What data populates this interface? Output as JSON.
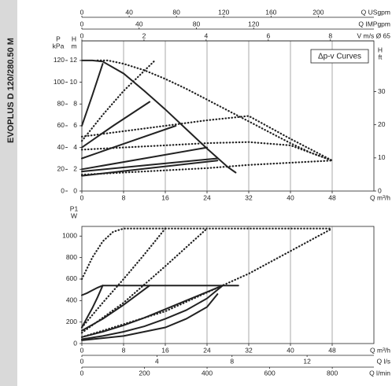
{
  "side_title": "EVOPLUS D 120/280.50 M",
  "chart_data": [
    {
      "type": "line",
      "annotation": "Δp-v Curves",
      "xlabel": "Q m³/h",
      "xlim": [
        0,
        56
      ],
      "xticks": [
        0,
        8,
        16,
        24,
        32,
        40,
        48
      ],
      "ylabel": [
        "H",
        "m"
      ],
      "ylim": [
        0,
        13.8
      ],
      "yticks": [
        0,
        2,
        4,
        6,
        8,
        10,
        12
      ],
      "grid": true,
      "extra_axes": [
        {
          "position": "left",
          "label": [
            "P",
            "kPa"
          ],
          "lim": [
            0,
            138
          ],
          "ticks": [
            0,
            20,
            40,
            60,
            80,
            100,
            120
          ]
        },
        {
          "position": "right",
          "label": [
            "H",
            "ft"
          ],
          "lim": [
            0,
            45.3
          ],
          "ticks": [
            0,
            10,
            20,
            30
          ]
        },
        {
          "position": "top",
          "label": "Q USgpm",
          "lim": [
            0,
            247
          ],
          "ticks": [
            0,
            40,
            80,
            120,
            160,
            200
          ]
        },
        {
          "position": "top",
          "label": "Q IMPgpm",
          "lim": [
            0,
            204
          ],
          "ticks": [
            0,
            40,
            80,
            120
          ]
        },
        {
          "position": "top",
          "label": "V m/s Ø 65",
          "lim": [
            0,
            9.4
          ],
          "ticks": [
            0,
            2,
            4,
            6,
            8
          ]
        }
      ],
      "series": [
        {
          "style": "solid",
          "color": "#222222",
          "x": [
            0,
            2,
            4,
            8,
            12,
            16,
            20,
            24,
            28,
            29.5
          ],
          "values": [
            12,
            12,
            11.9,
            10.8,
            9.2,
            7.5,
            5.7,
            3.9,
            2.2,
            1.7
          ]
        },
        {
          "style": "solid",
          "color": "#222222",
          "x": [
            0,
            2,
            4
          ],
          "values": [
            6,
            8.8,
            11.7
          ]
        },
        {
          "style": "solid",
          "color": "#222222",
          "x": [
            0,
            6,
            13
          ],
          "values": [
            4,
            6,
            8.2
          ]
        },
        {
          "style": "solid",
          "color": "#222222",
          "x": [
            0,
            9,
            18
          ],
          "values": [
            3,
            4.5,
            6
          ]
        },
        {
          "style": "solid",
          "color": "#222222",
          "x": [
            0,
            12,
            24
          ],
          "values": [
            2,
            3,
            4
          ]
        },
        {
          "style": "solid",
          "color": "#222222",
          "x": [
            0,
            13,
            26
          ],
          "values": [
            1.8,
            2.4,
            3
          ]
        },
        {
          "style": "solid",
          "color": "#222222",
          "x": [
            0,
            13,
            26
          ],
          "values": [
            1.4,
            2.1,
            2.8
          ]
        },
        {
          "style": "dotted",
          "color": "#222222",
          "x": [
            3,
            5,
            8,
            12,
            16,
            20,
            24,
            28,
            32,
            36,
            40,
            44,
            48
          ],
          "values": [
            12,
            12,
            11.7,
            11.1,
            10.3,
            9.4,
            8.4,
            7.4,
            6.4,
            5.4,
            4.4,
            3.5,
            2.8
          ]
        },
        {
          "style": "dotted",
          "color": "#222222",
          "x": [
            0,
            8,
            16,
            24,
            32,
            40,
            48
          ],
          "values": [
            5,
            5.5,
            6,
            6.5,
            6.9,
            4.8,
            2.8
          ]
        },
        {
          "style": "dotted",
          "color": "#222222",
          "x": [
            0,
            8,
            16,
            24,
            32,
            40,
            48
          ],
          "values": [
            3.8,
            4,
            4.2,
            4.4,
            4.5,
            4.2,
            2.8
          ]
        },
        {
          "style": "dotted",
          "color": "#222222",
          "x": [
            0,
            8,
            16,
            24,
            32,
            40,
            48
          ],
          "values": [
            1.5,
            1.7,
            1.9,
            2.1,
            2.4,
            2.6,
            2.8
          ]
        },
        {
          "style": "dotted",
          "color": "#222222",
          "x": [
            0,
            4,
            8,
            14
          ],
          "values": [
            4.6,
            7,
            9.2,
            12
          ]
        }
      ]
    },
    {
      "type": "line",
      "xlabel": "Q m³/h",
      "xlim": [
        0,
        56
      ],
      "xticks": [
        0,
        8,
        16,
        24,
        32,
        40,
        48
      ],
      "ylabel": [
        "P1",
        "W"
      ],
      "ylim": [
        0,
        1090
      ],
      "yticks": [
        0,
        200,
        400,
        600,
        800,
        1000
      ],
      "grid": true,
      "extra_axes": [
        {
          "position": "bottom",
          "label": "Q l/s",
          "lim": [
            0,
            15.56
          ],
          "ticks": [
            0,
            4,
            8,
            12
          ]
        },
        {
          "position": "bottom",
          "label": "Q l/min",
          "lim": [
            0,
            933
          ],
          "ticks": [
            0,
            200,
            400,
            600,
            800
          ]
        }
      ],
      "series": [
        {
          "style": "solid",
          "color": "#222222",
          "x": [
            0,
            1,
            2,
            3,
            4,
            30
          ],
          "values": [
            450,
            470,
            495,
            520,
            540,
            540
          ]
        },
        {
          "style": "solid",
          "color": "#222222",
          "x": [
            0,
            1,
            2,
            3,
            4
          ],
          "values": [
            150,
            240,
            330,
            430,
            540
          ]
        },
        {
          "style": "solid",
          "color": "#222222",
          "x": [
            0,
            4,
            8,
            13
          ],
          "values": [
            120,
            230,
            360,
            540
          ]
        },
        {
          "style": "solid",
          "color": "#222222",
          "x": [
            0,
            4,
            8,
            12,
            16,
            20,
            24,
            27
          ],
          "values": [
            60,
            110,
            170,
            240,
            320,
            400,
            480,
            540
          ]
        },
        {
          "style": "solid",
          "color": "#222222",
          "x": [
            0,
            4,
            8,
            12,
            16,
            20,
            24,
            27
          ],
          "values": [
            40,
            70,
            110,
            160,
            230,
            310,
            420,
            540
          ]
        },
        {
          "style": "solid",
          "color": "#222222",
          "x": [
            0,
            8,
            16,
            20,
            24,
            26
          ],
          "values": [
            30,
            70,
            150,
            230,
            340,
            460
          ]
        },
        {
          "style": "dotted",
          "color": "#222222",
          "x": [
            0,
            2,
            4,
            6,
            8,
            48
          ],
          "values": [
            600,
            800,
            950,
            1040,
            1070,
            1070
          ]
        },
        {
          "style": "dotted",
          "color": "#222222",
          "x": [
            0,
            4,
            8,
            12,
            16
          ],
          "values": [
            150,
            380,
            600,
            830,
            1070
          ]
        },
        {
          "style": "dotted",
          "color": "#222222",
          "x": [
            0,
            8,
            16,
            24
          ],
          "values": [
            100,
            380,
            720,
            1070
          ]
        },
        {
          "style": "dotted",
          "color": "#222222",
          "x": [
            0,
            16,
            32,
            48
          ],
          "values": [
            60,
            300,
            650,
            1070
          ]
        }
      ]
    }
  ]
}
